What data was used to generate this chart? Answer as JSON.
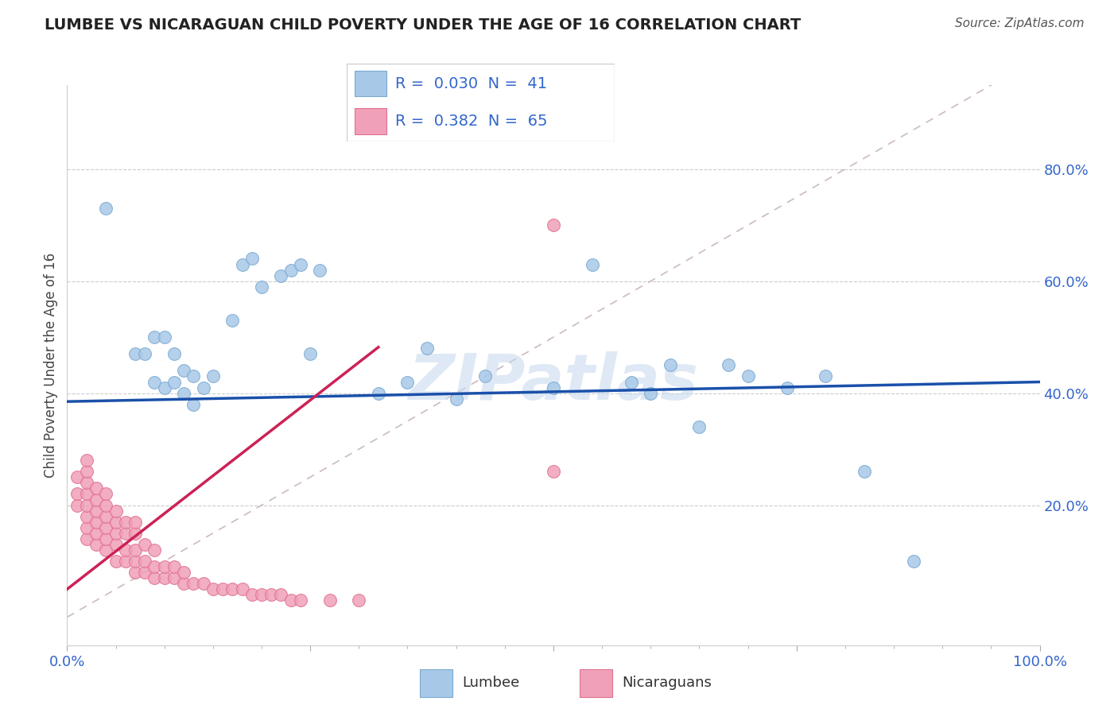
{
  "title": "LUMBEE VS NICARAGUAN CHILD POVERTY UNDER THE AGE OF 16 CORRELATION CHART",
  "source": "Source: ZipAtlas.com",
  "ylabel": "Child Poverty Under the Age of 16",
  "xlim": [
    0.0,
    1.0
  ],
  "ylim": [
    -0.05,
    0.95
  ],
  "lumbee_R": 0.03,
  "lumbee_N": 41,
  "nicaraguan_R": 0.382,
  "nicaraguan_N": 65,
  "lumbee_color": "#a8c8e8",
  "lumbee_edge_color": "#7aaad0",
  "nicaraguan_color": "#f0a0b8",
  "nicaraguan_edge_color": "#e07090",
  "lumbee_line_color": "#1a50aa",
  "nicaraguan_line_color": "#cc2255",
  "diagonal_color": "#ccbbbb",
  "watermark": "ZIPatlas",
  "lumbee_x": [
    0.04,
    0.07,
    0.08,
    0.09,
    0.09,
    0.1,
    0.1,
    0.11,
    0.11,
    0.12,
    0.12,
    0.13,
    0.13,
    0.14,
    0.15,
    0.17,
    0.18,
    0.19,
    0.2,
    0.22,
    0.23,
    0.24,
    0.25,
    0.26,
    0.32,
    0.35,
    0.37,
    0.4,
    0.43,
    0.5,
    0.54,
    0.58,
    0.6,
    0.62,
    0.65,
    0.68,
    0.7,
    0.74,
    0.78,
    0.82,
    0.87
  ],
  "lumbee_y": [
    0.73,
    0.47,
    0.47,
    0.42,
    0.5,
    0.41,
    0.5,
    0.42,
    0.47,
    0.4,
    0.44,
    0.38,
    0.43,
    0.41,
    0.43,
    0.53,
    0.63,
    0.64,
    0.59,
    0.61,
    0.62,
    0.63,
    0.47,
    0.62,
    0.4,
    0.42,
    0.48,
    0.39,
    0.43,
    0.41,
    0.63,
    0.42,
    0.4,
    0.45,
    0.34,
    0.45,
    0.43,
    0.41,
    0.43,
    0.26,
    0.1
  ],
  "nicaraguan_x": [
    0.01,
    0.01,
    0.01,
    0.02,
    0.02,
    0.02,
    0.02,
    0.02,
    0.02,
    0.02,
    0.02,
    0.03,
    0.03,
    0.03,
    0.03,
    0.03,
    0.03,
    0.04,
    0.04,
    0.04,
    0.04,
    0.04,
    0.04,
    0.05,
    0.05,
    0.05,
    0.05,
    0.05,
    0.06,
    0.06,
    0.06,
    0.06,
    0.07,
    0.07,
    0.07,
    0.07,
    0.07,
    0.08,
    0.08,
    0.08,
    0.09,
    0.09,
    0.09,
    0.1,
    0.1,
    0.11,
    0.11,
    0.12,
    0.12,
    0.13,
    0.14,
    0.15,
    0.16,
    0.17,
    0.18,
    0.19,
    0.2,
    0.21,
    0.22,
    0.23,
    0.24,
    0.27,
    0.3,
    0.5,
    0.5
  ],
  "nicaraguan_y": [
    0.2,
    0.22,
    0.25,
    0.14,
    0.16,
    0.18,
    0.2,
    0.22,
    0.24,
    0.26,
    0.28,
    0.13,
    0.15,
    0.17,
    0.19,
    0.21,
    0.23,
    0.12,
    0.14,
    0.16,
    0.18,
    0.2,
    0.22,
    0.1,
    0.13,
    0.15,
    0.17,
    0.19,
    0.1,
    0.12,
    0.15,
    0.17,
    0.08,
    0.1,
    0.12,
    0.15,
    0.17,
    0.08,
    0.1,
    0.13,
    0.07,
    0.09,
    0.12,
    0.07,
    0.09,
    0.07,
    0.09,
    0.06,
    0.08,
    0.06,
    0.06,
    0.05,
    0.05,
    0.05,
    0.05,
    0.04,
    0.04,
    0.04,
    0.04,
    0.03,
    0.03,
    0.03,
    0.03,
    0.26,
    0.7
  ]
}
